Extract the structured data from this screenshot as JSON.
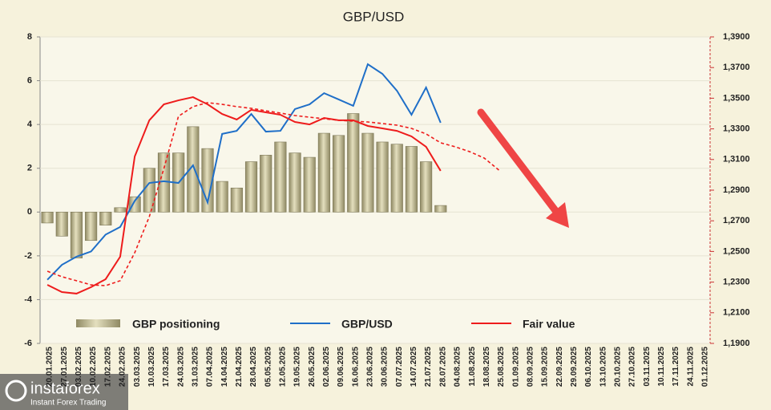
{
  "chart_data": {
    "type": "bar",
    "title": "GBP/USD",
    "categories": [
      "20.01.2025",
      "27.01.2025",
      "03.02.2025",
      "10.02.2025",
      "17.02.2025",
      "24.02.2025",
      "03.03.2025",
      "10.03.2025",
      "17.03.2025",
      "24.03.2025",
      "31.03.2025",
      "07.04.2025",
      "14.04.2025",
      "21.04.2025",
      "28.04.2025",
      "05.05.2025",
      "12.05.2025",
      "19.05.2025",
      "26.05.2025",
      "02.06.2025",
      "09.06.2025",
      "16.06.2025",
      "23.06.2025",
      "30.06.2025",
      "07.07.2025",
      "14.07.2025",
      "21.07.2025",
      "28.07.2025",
      "04.08.2025",
      "11.08.2025",
      "18.08.2025",
      "25.08.2025",
      "01.09.2025",
      "08.09.2025",
      "15.09.2025",
      "22.09.2025",
      "29.09.2025",
      "06.10.2025",
      "13.10.2025",
      "20.10.2025",
      "27.10.2025",
      "03.11.2025",
      "10.11.2025",
      "17.11.2025",
      "24.11.2025",
      "01.12.2025"
    ],
    "series": [
      {
        "name": "GBP positioning",
        "color": "#c2bb8e",
        "type": "bar",
        "values": [
          -0.5,
          -1.1,
          -2.1,
          -1.3,
          -0.6,
          0.2,
          0.7,
          2.0,
          2.7,
          2.7,
          3.9,
          2.9,
          1.4,
          1.1,
          2.3,
          2.6,
          3.2,
          2.7,
          2.5,
          3.6,
          3.5,
          4.5,
          3.6,
          3.2,
          3.1,
          3.0,
          2.3,
          0.3,
          null,
          null,
          null,
          null,
          null,
          null,
          null,
          null,
          null,
          null,
          null,
          null,
          null,
          null,
          null,
          null,
          null,
          null
        ]
      },
      {
        "name": "GBP/USD",
        "color": "#1f6fc8",
        "type": "line",
        "axis": "y2",
        "values": [
          1.2315,
          1.2413,
          1.2466,
          1.25,
          1.261,
          1.266,
          1.283,
          1.2947,
          1.2958,
          1.2947,
          1.3062,
          1.282,
          1.3267,
          1.3287,
          1.3397,
          1.3282,
          1.3287,
          1.3429,
          1.346,
          1.3533,
          1.3492,
          1.345,
          1.3722,
          1.3659,
          1.3549,
          1.3392,
          1.357,
          1.334,
          null,
          null,
          null,
          null,
          null,
          null,
          null,
          null,
          null,
          null,
          null,
          null,
          null,
          null,
          null,
          null,
          null,
          null
        ]
      },
      {
        "name": "Fair value",
        "color": "#ee1c1c",
        "type": "line",
        "axis": "y2",
        "values": [
          1.2282,
          1.2235,
          1.2225,
          1.2267,
          1.2319,
          1.2466,
          1.312,
          1.3356,
          1.346,
          1.3486,
          1.3507,
          1.346,
          1.3397,
          1.3361,
          1.3424,
          1.3408,
          1.3392,
          1.3345,
          1.3329,
          1.3371,
          1.3356,
          1.3356,
          1.3319,
          1.3303,
          1.3287,
          1.3251,
          1.3183,
          1.3026,
          null,
          null,
          null,
          null,
          null,
          null,
          null,
          null,
          null,
          null,
          null,
          null,
          null,
          null,
          null,
          null,
          null,
          null
        ]
      },
      {
        "color": "#ee1c1c",
        "type": "line",
        "dashed": true,
        "axis": "y2",
        "values": [
          1.2371,
          1.2335,
          1.2309,
          1.2282,
          1.2277,
          1.2309,
          1.2492,
          1.2727,
          1.3041,
          1.3382,
          1.3445,
          1.3471,
          1.346,
          1.3445,
          1.3434,
          1.3418,
          1.3403,
          1.3387,
          1.3376,
          1.3366,
          1.3356,
          1.335,
          1.3345,
          1.3335,
          1.3324,
          1.3303,
          1.3267,
          1.3209,
          1.3183,
          1.3151,
          1.3109,
          1.3031,
          null,
          null,
          null,
          null,
          null,
          null,
          null,
          null,
          null,
          null,
          null,
          null,
          null,
          null
        ]
      }
    ],
    "ylim": [
      -6,
      8
    ],
    "yticks": [
      -6,
      -4,
      -2,
      0,
      2,
      4,
      6,
      8
    ],
    "y2lim": [
      1.19,
      1.39
    ],
    "y2ticks": [
      {
        "value": 1.19,
        "label": "1,1900"
      },
      {
        "value": 1.21,
        "label": "1,2100"
      },
      {
        "value": 1.23,
        "label": "1,2300"
      },
      {
        "value": 1.25,
        "label": "1,2500"
      },
      {
        "value": 1.27,
        "label": "1,2700"
      },
      {
        "value": 1.29,
        "label": "1,2900"
      },
      {
        "value": 1.31,
        "label": "1,3100"
      },
      {
        "value": 1.33,
        "label": "1,3300"
      },
      {
        "value": 1.35,
        "label": "1,3500"
      },
      {
        "value": 1.37,
        "label": "1,3700"
      },
      {
        "value": 1.39,
        "label": "1,3900"
      }
    ],
    "grid": true,
    "legend": "bottom",
    "watermark": {
      "brand": "instaforex",
      "tagline": "Instant Forex Trading"
    }
  }
}
